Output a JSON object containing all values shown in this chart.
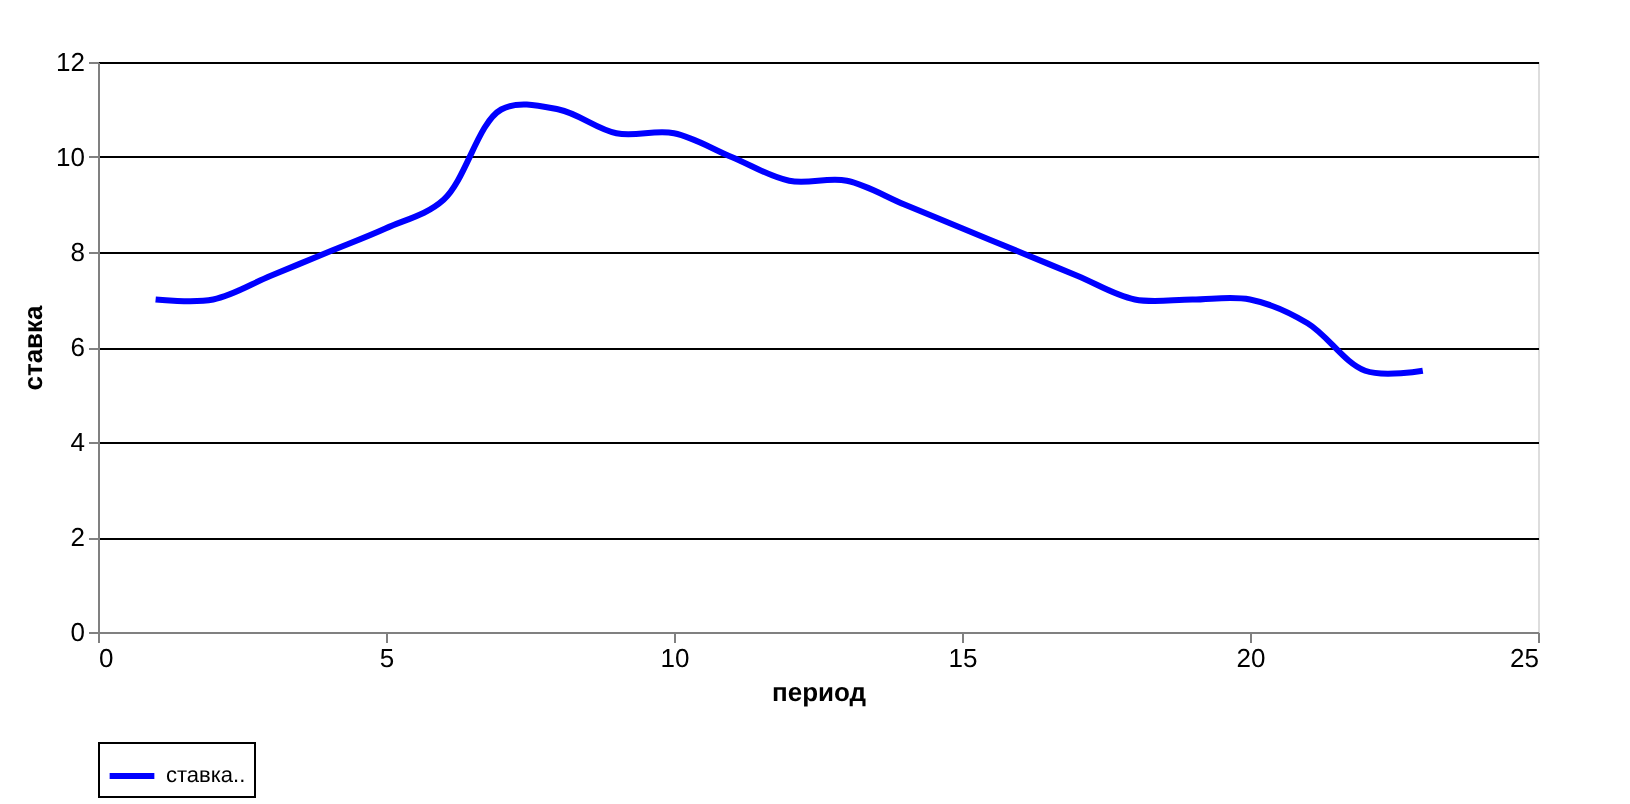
{
  "chart_data": {
    "type": "line",
    "xlabel": "период",
    "ylabel": "ставка",
    "x": [
      1,
      2,
      3,
      4,
      5,
      6,
      7,
      8,
      9,
      10,
      11,
      12,
      13,
      14,
      15,
      16,
      17,
      18,
      19,
      20,
      21,
      22,
      23
    ],
    "series": [
      {
        "name": "ставка..",
        "color": "#0000ff",
        "values": [
          7.0,
          7.0,
          7.5,
          8.0,
          8.5,
          9.1,
          11.0,
          11.0,
          10.5,
          10.5,
          10.0,
          9.5,
          9.5,
          9.0,
          8.5,
          8.0,
          7.5,
          7.0,
          7.0,
          7.0,
          6.5,
          5.5,
          5.5
        ]
      }
    ],
    "xlim": [
      0,
      25
    ],
    "xticks": [
      0,
      5,
      10,
      15,
      20,
      25
    ],
    "ylim": [
      0,
      12
    ],
    "yticks": [
      0,
      2,
      4,
      6,
      8,
      10,
      12
    ],
    "grid": "y",
    "legend": "bottom",
    "marker": "none",
    "line_style": "solid"
  }
}
